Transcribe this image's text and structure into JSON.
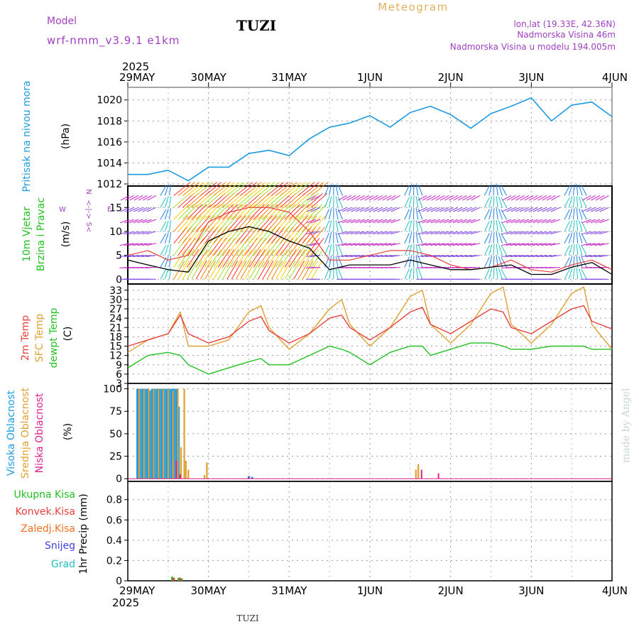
{
  "header": {
    "model_label": "Model",
    "model_name": "wrf-nmm_v3.9.1 e1km",
    "station": "TUZI",
    "product": "Meteogram",
    "lonlat": "lon,lat (19.33E, 42.36N)",
    "elevation": "Nadmorska Visina 46m",
    "model_elevation": "Nadmorska Visina u modelu 194.005m",
    "year": "2025",
    "footer_station": "TUZI",
    "credit": "made by Angel"
  },
  "colors": {
    "pressure": "#1e9be0",
    "temp2m": "#e8403c",
    "sfc_temp": "#e0a030",
    "dewpt": "#20c020",
    "cloud_high": "#1e9be0",
    "cloud_mid": "#e0a030",
    "cloud_low": "#e0208c",
    "precip_total": "#20c020",
    "precip_conv": "#e8403c",
    "precip_frozen": "#f07020",
    "snow": "#4040e0",
    "graupel": "#20c0c0",
    "wind_black": "#000000",
    "wind_red": "#e8403c"
  },
  "chart_data": [
    {
      "id": "pressure",
      "type": "line",
      "ylabel": "Pritisak na nivou mora",
      "unit": "(hPa)",
      "x_ticks": [
        "29MAY",
        "30MAY",
        "31MAY",
        "1JUN",
        "2JUN",
        "3JUN",
        "4JUN"
      ],
      "ylim": [
        1011.8,
        1021.2
      ],
      "y_ticks": [
        1012,
        1014,
        1016,
        1018,
        1020
      ],
      "x_days": [
        0,
        0.25,
        0.5,
        0.75,
        1.0,
        1.25,
        1.5,
        1.75,
        2.0,
        2.25,
        2.5,
        2.75,
        3.0,
        3.25,
        3.5,
        3.75,
        4.0,
        4.25,
        4.5,
        4.75,
        5.0,
        5.25,
        5.5,
        5.75,
        6.0
      ],
      "series": [
        {
          "values": [
            1012.9,
            1012.9,
            1013.3,
            1012.3,
            1013.6,
            1013.6,
            1014.9,
            1015.2,
            1014.7,
            1016.3,
            1017.4,
            1017.8,
            1018.5,
            1017.4,
            1018.8,
            1019.4,
            1018.6,
            1017.3,
            1018.7,
            1019.4,
            1020.2,
            1018.0,
            1019.5,
            1019.8,
            1018.4
          ]
        }
      ],
      "grid": true
    },
    {
      "id": "wind",
      "type": "line",
      "ylabel": "10m Vjetar",
      "ylabel2": "Brzina i Pravac",
      "unit": "(m/s)",
      "compass_w": "W",
      "compass_e": "E",
      "compass_line1": "N",
      "compass_line2": "<-|->",
      "compass_line3": "S<",
      "ylim": [
        -1,
        19.5
      ],
      "y_ticks": [
        0,
        5,
        10,
        15
      ],
      "x_days": [
        0,
        0.25,
        0.5,
        0.75,
        1.0,
        1.25,
        1.5,
        1.75,
        2.0,
        2.25,
        2.5,
        2.75,
        3.0,
        3.25,
        3.5,
        3.75,
        4.0,
        4.25,
        4.5,
        4.75,
        5.0,
        5.25,
        5.5,
        5.75,
        6.0
      ],
      "series": [
        {
          "values": [
            4,
            3,
            2,
            1.5,
            8,
            10,
            11,
            10,
            8,
            6.5,
            2,
            3,
            3,
            3,
            4,
            3,
            2,
            2,
            2.5,
            3,
            1,
            1,
            2.5,
            3.5,
            1
          ]
        },
        {
          "values": [
            5,
            6,
            4,
            5,
            12,
            14,
            15,
            15,
            14,
            10,
            4,
            4,
            5,
            6,
            6,
            5,
            3,
            2,
            2.5,
            4,
            2,
            1.5,
            3,
            4,
            2
          ]
        }
      ],
      "grid": true
    },
    {
      "id": "temperature",
      "type": "line",
      "ylabel": "2m Temp",
      "ylabel2": "SFC Temp",
      "ylabel3": "dewpt Temp",
      "unit": "(C)",
      "ylim": [
        3,
        35
      ],
      "y_ticks": [
        3,
        6,
        9,
        12,
        15,
        18,
        21,
        24,
        27,
        30,
        33
      ],
      "x_days": [
        0,
        0.25,
        0.5,
        0.65,
        0.75,
        1.0,
        1.25,
        1.5,
        1.65,
        1.75,
        2.0,
        2.25,
        2.5,
        2.65,
        2.75,
        3.0,
        3.25,
        3.5,
        3.65,
        3.75,
        4.0,
        4.25,
        4.5,
        4.65,
        4.75,
        5.0,
        5.25,
        5.5,
        5.65,
        5.75,
        6.0
      ],
      "series": [
        {
          "values": [
            15,
            17,
            19,
            25,
            19,
            16,
            18,
            23,
            24.5,
            20,
            16,
            19,
            24,
            25,
            21,
            17,
            21,
            26,
            27.5,
            22,
            19,
            23,
            27,
            26,
            21,
            19,
            23,
            27,
            28,
            23,
            20.5
          ]
        },
        {
          "values": [
            13,
            17,
            19,
            26,
            15,
            15,
            17,
            26,
            28,
            21,
            14,
            19,
            27,
            30,
            22,
            15,
            21,
            31,
            33,
            22,
            16,
            22,
            32,
            34,
            22,
            16,
            22,
            32,
            34,
            22,
            14
          ]
        },
        {
          "values": [
            8,
            12,
            13,
            12,
            9,
            6,
            8,
            10,
            11,
            9,
            9,
            12,
            15,
            14,
            13,
            9,
            13,
            15,
            15,
            12,
            14,
            16,
            16,
            15,
            14,
            14,
            15,
            15,
            15,
            14,
            14
          ]
        }
      ],
      "grid": true
    },
    {
      "id": "clouds",
      "type": "bar",
      "ylabel": "Visoka Oblacnost",
      "ylabel2": "Srednja Oblacnost",
      "ylabel3": "Niska Oblacnost",
      "unit": "(%)",
      "ylim": [
        -3,
        106
      ],
      "y_ticks": [
        0,
        25,
        50,
        75,
        100
      ],
      "series": [
        {
          "x_days": [
            0.12,
            0.15,
            0.18,
            0.21,
            0.24,
            0.27,
            0.3,
            0.33,
            0.36,
            0.39,
            0.42,
            0.45,
            0.48,
            0.51,
            0.54,
            0.57,
            0.6,
            0.63,
            1.5,
            1.54
          ],
          "values": [
            100,
            100,
            100,
            100,
            100,
            98,
            100,
            100,
            100,
            100,
            100,
            100,
            100,
            100,
            100,
            100,
            100,
            80,
            3,
            2
          ]
        },
        {
          "x_days": [
            0.14,
            0.2,
            0.26,
            0.32,
            0.38,
            0.44,
            0.5,
            0.56,
            0.62,
            0.66,
            0.7,
            0.72,
            0.75,
            0.95,
            0.98,
            3.57,
            3.6
          ],
          "values": [
            100,
            100,
            100,
            100,
            100,
            100,
            100,
            98,
            100,
            35,
            100,
            20,
            10,
            4,
            18,
            10,
            16
          ]
        },
        {
          "x_days": [
            0.6,
            0.65,
            1.5,
            3.64,
            3.85
          ],
          "values": [
            20,
            5,
            2,
            10,
            6
          ]
        }
      ],
      "grid": true
    },
    {
      "id": "precip",
      "type": "bar",
      "ylabel": "1hr Precip (mm)",
      "legend": [
        "Ukupna Kisa",
        "Konvek.Kisa",
        "Zaledj.Kisa",
        "Snijeg",
        "Grad"
      ],
      "ylim": [
        0,
        0.98
      ],
      "y_ticks": [
        0,
        0.2,
        0.4,
        0.6,
        0.8
      ],
      "series": [
        {
          "x_days": [
            0.55,
            0.63,
            0.67
          ],
          "values": [
            0.04,
            0.03,
            0.02
          ]
        },
        {
          "x_days": [
            0.57,
            0.65
          ],
          "values": [
            0.03,
            0.03
          ]
        }
      ],
      "grid": true
    }
  ]
}
